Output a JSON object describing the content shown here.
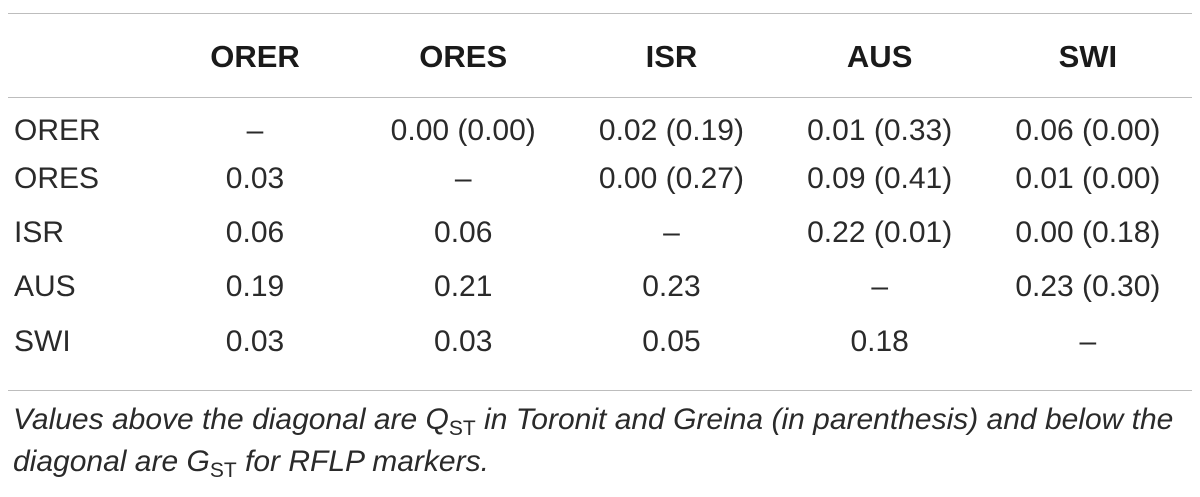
{
  "table": {
    "columns": [
      "",
      "ORER",
      "ORES",
      "ISR",
      "AUS",
      "SWI"
    ],
    "rows": [
      {
        "label": "ORER",
        "cells": [
          "–",
          "0.00 (0.00)",
          "0.02 (0.19)",
          "0.01 (0.33)",
          "0.06 (0.00)"
        ]
      },
      {
        "label": "ORES",
        "cells": [
          "0.03",
          "–",
          "0.00 (0.27)",
          "0.09 (0.41)",
          "0.01 (0.00)"
        ]
      },
      {
        "label": "ISR",
        "cells": [
          "0.06",
          "0.06",
          "–",
          "0.22 (0.01)",
          "0.00 (0.18)"
        ]
      },
      {
        "label": "AUS",
        "cells": [
          "0.19",
          "0.21",
          "0.23",
          "–",
          "0.23 (0.30)"
        ]
      },
      {
        "label": "SWI",
        "cells": [
          "0.03",
          "0.03",
          "0.05",
          "0.18",
          "–"
        ]
      }
    ]
  },
  "note": {
    "part1": "Values above the diagonal are Q",
    "sub1": "ST",
    "part2": " in Toronit and Greina (in parenthesis) and below the diagonal are G",
    "sub2": "ST",
    "part3": " for RFLP markers."
  }
}
